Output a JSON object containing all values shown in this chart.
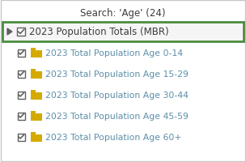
{
  "title": "Search: 'Age' (24)",
  "header_row": "2023 Population Totals (MBR)",
  "sub_items": [
    "2023 Total Population Age 0-14",
    "2023 Total Population Age 15-29",
    "2023 Total Population Age 30-44",
    "2023 Total Population Age 45-59",
    "2023 Total Population Age 60+"
  ],
  "bg_color": "#ffffff",
  "header_bg": "#f5f5f5",
  "header_border_color": "#4a8c3f",
  "title_color": "#3c3c3c",
  "item_text_color": "#5b8fa8",
  "header_text_color": "#3c3c3c",
  "checkbox_color": "#606060",
  "folder_color": "#d4aa00",
  "outer_border_color": "#c8c8c8",
  "title_fontsize": 8.5,
  "header_fontsize": 8.5,
  "item_fontsize": 7.8
}
